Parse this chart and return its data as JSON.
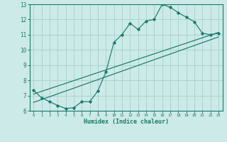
{
  "xlabel": "Humidex (Indice chaleur)",
  "bg_color": "#cceae7",
  "grid_color": "#aad4d0",
  "line_color": "#1a7a6e",
  "xlim": [
    -0.5,
    23.5
  ],
  "ylim": [
    6,
    13
  ],
  "xticks": [
    0,
    1,
    2,
    3,
    4,
    5,
    6,
    7,
    8,
    9,
    10,
    11,
    12,
    13,
    14,
    15,
    16,
    17,
    18,
    19,
    20,
    21,
    22,
    23
  ],
  "yticks": [
    6,
    7,
    8,
    9,
    10,
    11,
    12,
    13
  ],
  "line1_x": [
    0,
    1,
    2,
    3,
    4,
    5,
    6,
    7,
    8,
    9,
    10,
    11,
    12,
    13,
    14,
    15,
    16,
    17,
    18,
    19,
    20,
    21,
    22,
    23
  ],
  "line1_y": [
    7.35,
    6.85,
    6.6,
    6.35,
    6.15,
    6.2,
    6.6,
    6.6,
    7.3,
    8.55,
    10.5,
    11.0,
    11.75,
    11.35,
    11.9,
    12.0,
    13.0,
    12.8,
    12.45,
    12.15,
    11.85,
    11.1,
    11.0,
    11.1
  ],
  "line2_x": [
    0,
    23
  ],
  "line2_y": [
    7.1,
    11.15
  ],
  "line3_x": [
    0,
    23
  ],
  "line3_y": [
    6.55,
    10.85
  ]
}
